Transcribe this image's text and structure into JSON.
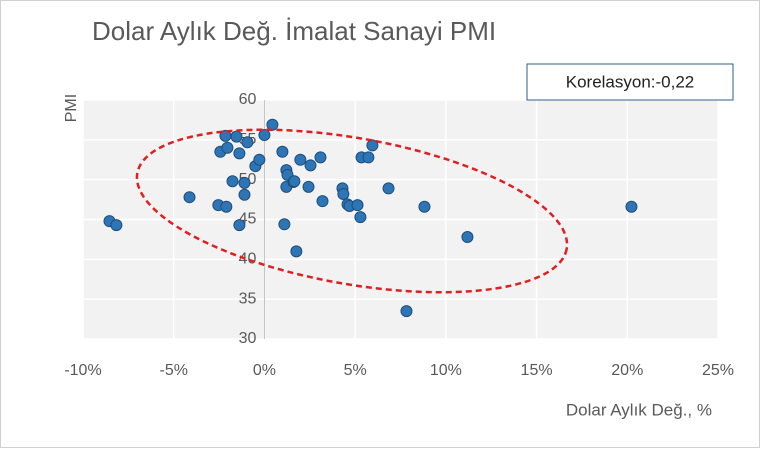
{
  "chart_data": {
    "type": "scatter",
    "title": "Dolar Aylık Değ. İmalat Sanayi PMI",
    "annotation": "Korelasyon:-0,22",
    "x_label": "Dolar Aylık Değ., %",
    "y_label": "PMI",
    "color": "#2e75b6",
    "grid": true,
    "xlim": [
      -10,
      25
    ],
    "ylim": [
      30,
      60
    ],
    "xticks": [
      {
        "value": -10,
        "label": "-10%"
      },
      {
        "value": -5,
        "label": "-5%"
      },
      {
        "value": 0,
        "label": "0%"
      },
      {
        "value": 5,
        "label": "5%"
      },
      {
        "value": 10,
        "label": "10%"
      },
      {
        "value": 15,
        "label": "15%"
      },
      {
        "value": 20,
        "label": "20%"
      },
      {
        "value": 25,
        "label": "25%"
      }
    ],
    "yticks": [
      30,
      35,
      40,
      45,
      50,
      55,
      60
    ],
    "x": [
      -8.54,
      -8.16,
      -4.13,
      -2.15,
      -1.54,
      -2.43,
      -2.04,
      -1.38,
      -0.94,
      -1.76,
      -1.1,
      -1.1,
      -2.54,
      -2.1,
      -1.38,
      -0.5,
      -0.28,
      0,
      0.44,
      0.99,
      1.21,
      1.27,
      1.21,
      1.6,
      1.65,
      1.1,
      1.76,
      1.98,
      2.54,
      2.43,
      3.09,
      3.2,
      4.3,
      4.35,
      4.58,
      4.69,
      5.13,
      5.35,
      5.73,
      5.29,
      5.95,
      6.84,
      7.83,
      8.82,
      11.19,
      20.23
    ],
    "values": [
      44.8,
      44.3,
      47.8,
      55.5,
      55.4,
      53.5,
      54.0,
      53.3,
      54.7,
      49.8,
      49.6,
      48.1,
      46.8,
      46.6,
      44.3,
      51.7,
      52.5,
      55.6,
      56.9,
      53.5,
      51.2,
      50.6,
      49.1,
      49.7,
      49.8,
      44.4,
      41.0,
      52.5,
      51.8,
      49.1,
      52.8,
      47.3,
      48.9,
      48.2,
      46.9,
      46.7,
      46.8,
      52.8,
      52.8,
      45.3,
      54.3,
      48.9,
      33.5,
      46.6,
      42.8,
      46.6
    ]
  }
}
